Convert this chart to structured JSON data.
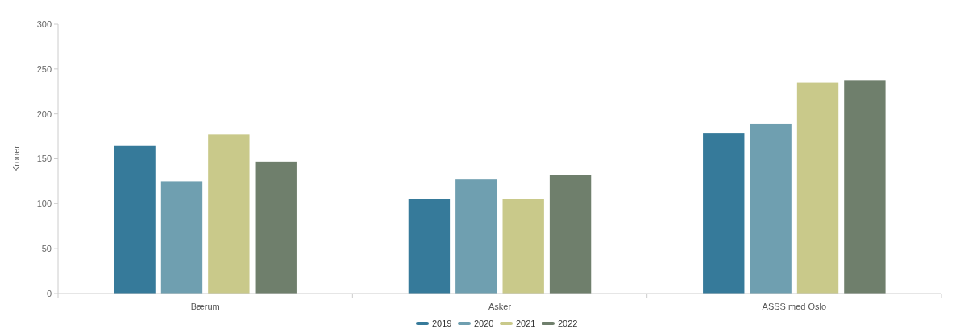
{
  "chart_data": {
    "type": "bar",
    "ylabel": "Kroner",
    "categories": [
      "Bærum",
      "Asker",
      "ASSS med Oslo"
    ],
    "series": [
      {
        "name": "2019",
        "color": "#367a9a",
        "values": [
          165,
          105,
          179
        ]
      },
      {
        "name": "2020",
        "color": "#6f9fb0",
        "values": [
          125,
          127,
          189
        ]
      },
      {
        "name": "2021",
        "color": "#c9c98a",
        "values": [
          177,
          105,
          235
        ]
      },
      {
        "name": "2022",
        "color": "#6f7f6c",
        "values": [
          147,
          132,
          237
        ]
      }
    ],
    "ylim": [
      0,
      300
    ],
    "yticks": [
      0,
      50,
      100,
      150,
      200,
      250,
      300
    ],
    "grid": false,
    "legend": "bottom"
  }
}
